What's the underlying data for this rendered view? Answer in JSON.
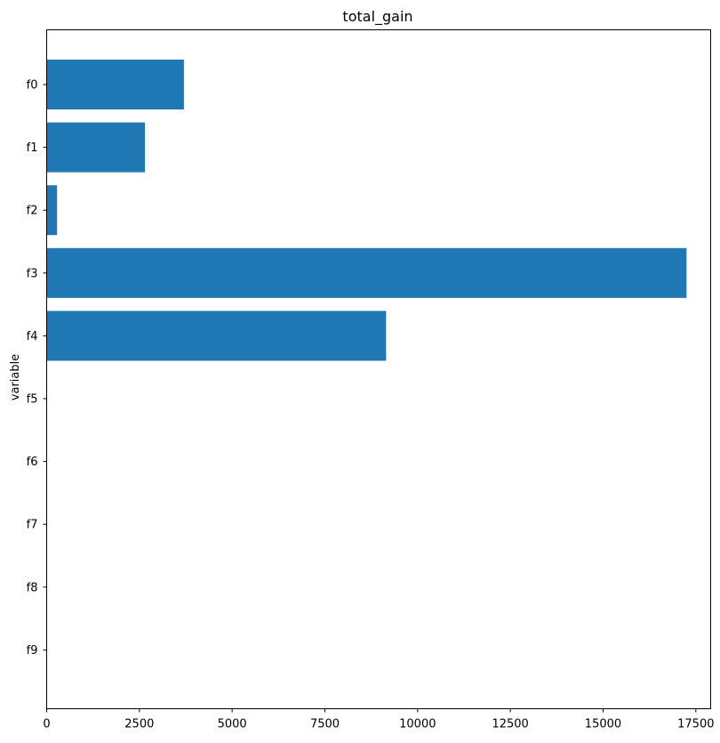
{
  "chart_data": {
    "type": "bar",
    "orientation": "horizontal",
    "title": "total_gain",
    "xlabel": "",
    "ylabel": "variable",
    "categories": [
      "f0",
      "f1",
      "f2",
      "f3",
      "f4",
      "f5",
      "f6",
      "f7",
      "f8",
      "f9"
    ],
    "values": [
      3700,
      2650,
      280,
      17250,
      9150,
      0,
      0,
      0,
      0,
      0
    ],
    "xlim": [
      0,
      17900
    ],
    "xticks": [
      0,
      2500,
      5000,
      7500,
      10000,
      12500,
      15000,
      17500
    ],
    "xtick_labels": [
      "0",
      "2500",
      "5000",
      "7500",
      "10000",
      "12500",
      "15000",
      "17500"
    ],
    "grid": false,
    "bar_color": "#1f77b4"
  }
}
